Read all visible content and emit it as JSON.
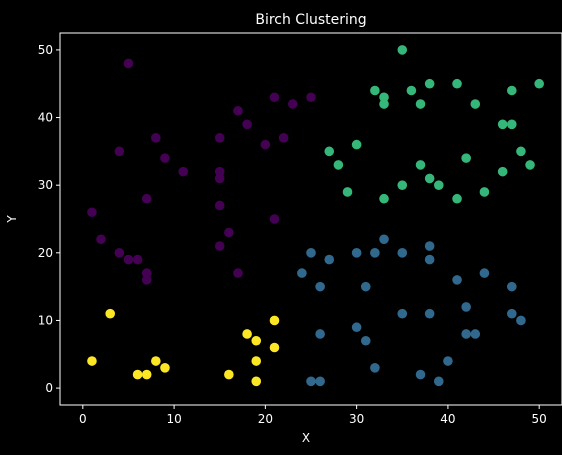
{
  "chart_data": {
    "type": "scatter",
    "title": "Birch Clustering",
    "xlabel": "X",
    "ylabel": "Y",
    "xlim": [
      -2.5,
      52.5
    ],
    "ylim": [
      -2.5,
      52.5
    ],
    "xticks": [
      "0",
      "10",
      "20",
      "30",
      "40",
      "50"
    ],
    "yticks": [
      "0",
      "10",
      "20",
      "30",
      "40",
      "50"
    ],
    "grid": false,
    "background": "#000000",
    "series": [
      {
        "color": "#440154",
        "x": [
          5,
          4,
          8,
          9,
          11,
          15,
          15,
          15,
          15,
          15,
          16,
          17,
          17,
          18,
          20,
          21,
          21,
          22,
          23,
          25,
          1,
          2,
          4,
          5,
          6,
          7,
          7,
          7
        ],
        "y": [
          48,
          35,
          37,
          34,
          32,
          37,
          32,
          31,
          27,
          21,
          23,
          17,
          41,
          39,
          36,
          43,
          25,
          37,
          42,
          43,
          26,
          22,
          20,
          19,
          19,
          17,
          16,
          28
        ]
      },
      {
        "color": "#31688e",
        "x": [
          24,
          25,
          26,
          26,
          25,
          26,
          27,
          30,
          30,
          31,
          31,
          32,
          32,
          33,
          35,
          35,
          37,
          38,
          38,
          38,
          39,
          40,
          41,
          42,
          42,
          43,
          44,
          47,
          47,
          48
        ],
        "y": [
          17,
          20,
          15,
          8,
          1,
          1,
          19,
          20,
          9,
          15,
          7,
          20,
          3,
          22,
          20,
          11,
          2,
          21,
          19,
          11,
          1,
          4,
          16,
          12,
          8,
          8,
          17,
          15,
          11,
          10
        ]
      },
      {
        "color": "#35b779",
        "x": [
          27,
          28,
          29,
          30,
          32,
          33,
          33,
          33,
          35,
          35,
          36,
          37,
          37,
          38,
          38,
          39,
          41,
          41,
          42,
          43,
          44,
          46,
          46,
          47,
          47,
          48,
          49,
          50
        ],
        "y": [
          35,
          33,
          29,
          36,
          44,
          43,
          42,
          28,
          50,
          30,
          44,
          42,
          33,
          45,
          31,
          30,
          45,
          28,
          34,
          42,
          29,
          39,
          32,
          44,
          39,
          35,
          33,
          45
        ]
      },
      {
        "color": "#fde725",
        "x": [
          1,
          3,
          6,
          7,
          8,
          9,
          16,
          18,
          19,
          19,
          19,
          21,
          21
        ],
        "y": [
          4,
          11,
          2,
          2,
          4,
          3,
          2,
          8,
          7,
          4,
          1,
          10,
          6
        ]
      }
    ]
  }
}
